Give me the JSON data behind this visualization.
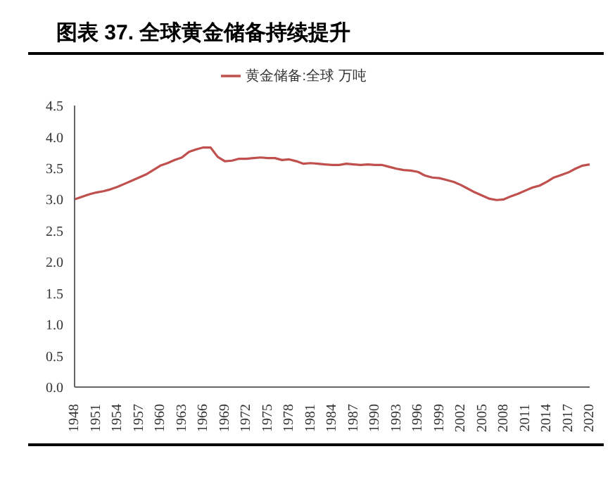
{
  "chart_data": {
    "type": "line",
    "title": "图表 37. 全球黄金储备持续提升",
    "categories": [
      "1948",
      null,
      null,
      "1951",
      null,
      null,
      "1954",
      null,
      null,
      "1957",
      null,
      null,
      "1960",
      null,
      null,
      "1963",
      null,
      null,
      "1966",
      null,
      null,
      "1969",
      null,
      null,
      "1972",
      null,
      null,
      "1975",
      null,
      null,
      "1978",
      null,
      null,
      "1981",
      null,
      null,
      "1984",
      null,
      null,
      "1987",
      null,
      null,
      "1990",
      null,
      null,
      "1993",
      null,
      null,
      "1996",
      null,
      null,
      "1999",
      null,
      null,
      "2002",
      null,
      null,
      "2005",
      null,
      null,
      "2008",
      null,
      null,
      "2011",
      null,
      null,
      "2014",
      null,
      null,
      "2017",
      null,
      null,
      "2020"
    ],
    "series": [
      {
        "name": "黄金储备:全球 万吨",
        "color": "#c0504d",
        "values": [
          3.0,
          3.04,
          3.08,
          3.11,
          3.13,
          3.16,
          3.2,
          3.25,
          3.3,
          3.35,
          3.4,
          3.47,
          3.54,
          3.58,
          3.63,
          3.67,
          3.76,
          3.8,
          3.83,
          3.83,
          3.68,
          3.61,
          3.62,
          3.65,
          3.65,
          3.66,
          3.67,
          3.66,
          3.66,
          3.63,
          3.64,
          3.61,
          3.57,
          3.58,
          3.57,
          3.56,
          3.55,
          3.55,
          3.57,
          3.56,
          3.55,
          3.56,
          3.55,
          3.55,
          3.52,
          3.49,
          3.47,
          3.46,
          3.44,
          3.38,
          3.35,
          3.34,
          3.31,
          3.28,
          3.23,
          3.17,
          3.11,
          3.06,
          3.01,
          2.99,
          3.0,
          3.05,
          3.09,
          3.14,
          3.19,
          3.22,
          3.28,
          3.35,
          3.39,
          3.43,
          3.49,
          3.54,
          3.56
        ]
      }
    ],
    "ylim": [
      0,
      4.5
    ],
    "yticks": [
      {
        "value": 0,
        "label": "0.0"
      },
      0.5,
      {
        "value": 1,
        "label": "1.0"
      },
      1.5,
      {
        "value": 2,
        "label": "2.0"
      },
      2.5,
      {
        "value": 3,
        "label": "3.0"
      },
      3.5,
      {
        "value": 4,
        "label": "4.0"
      },
      4.5
    ],
    "legend": "top",
    "marker": "none",
    "line_style": "solid"
  }
}
